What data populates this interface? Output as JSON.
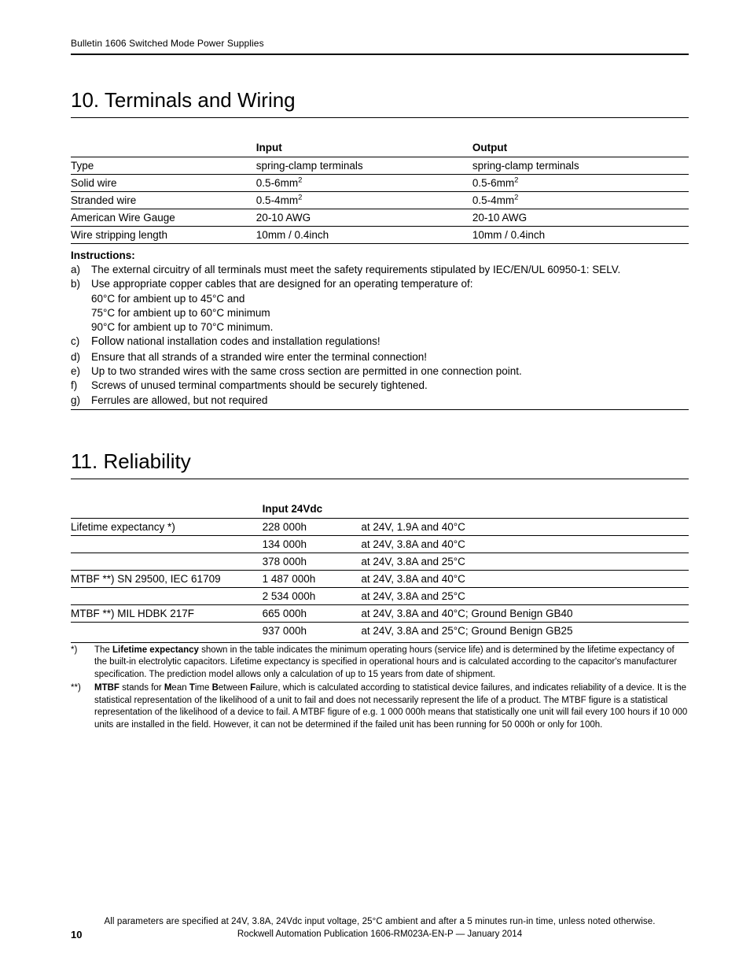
{
  "header": {
    "running_head": "Bulletin 1606 Switched Mode Power Supplies"
  },
  "section10": {
    "title": "10. Terminals and Wiring",
    "col_input": "Input",
    "col_output": "Output",
    "rows": [
      {
        "label": "Type",
        "input": "spring-clamp terminals",
        "output": "spring-clamp terminals",
        "sup": false
      },
      {
        "label": "Solid wire",
        "input": "0.5-6mm",
        "output": "0.5-6mm",
        "sup": true
      },
      {
        "label": "Stranded wire",
        "input": "0.5-4mm",
        "output": "0.5-4mm",
        "sup": true
      },
      {
        "label": "American Wire Gauge",
        "input": "20-10 AWG",
        "output": "20-10 AWG",
        "sup": false
      },
      {
        "label": "Wire stripping length",
        "input": "10mm / 0.4inch",
        "output": "10mm / 0.4inch",
        "sup": false
      }
    ],
    "instructions_hdr": "Instructions:",
    "instructions": {
      "a": "The external circuitry of all terminals must meet the safety requirements stipulated by IEC/EN/UL 60950-1: SELV.",
      "b": "Use appropriate copper cables that are designed for an operating temperature of:",
      "b1": "60°C for ambient up to 45°C and",
      "b2": "75°C for ambient up to 60°C minimum",
      "b3": "90°C for ambient up to 70°C minimum.",
      "c_pre": "Follow",
      "c_rest": " national installation codes and installation regulations!",
      "d": "Ensure that all strands of a stranded wire enter the terminal connection!",
      "e": "Up to two stranded wires with the same cross section are permitted in one connection point.",
      "f": "Screws of unused terminal compartments should be securely tightened.",
      "g": "Ferrules are allowed, but not required"
    }
  },
  "section11": {
    "title": "11. Reliability",
    "col_input": "Input 24Vdc",
    "groups": [
      {
        "label": "Lifetime expectancy *)",
        "rows": [
          {
            "val": "228 000h",
            "cond": "at 24V, 1.9A and 40°C"
          },
          {
            "val": "134 000h",
            "cond": "at 24V, 3.8A and 40°C"
          },
          {
            "val": "378 000h",
            "cond": "at 24V, 3.8A and 25°C"
          }
        ]
      },
      {
        "label": "MTBF **)  SN 29500, IEC 61709",
        "rows": [
          {
            "val": "1 487 000h",
            "cond": "at 24V, 3.8A and 40°C"
          },
          {
            "val": "2 534 000h",
            "cond": "at 24V, 3.8A and 25°C"
          }
        ]
      },
      {
        "label": "MTBF **)  MIL HDBK 217F",
        "rows": [
          {
            "val": "665 000h",
            "cond": "at 24V, 3.8A and 40°C; Ground Benign GB40"
          },
          {
            "val": "937 000h",
            "cond": "at 24V, 3.8A and 25°C; Ground Benign GB25"
          }
        ]
      }
    ],
    "footnotes": {
      "f1_mark": "*)",
      "f1_bold": "Lifetime expectancy",
      "f1_pre": "The ",
      "f1_rest": " shown in the table indicates the minimum operating hours (service life) and is determined by the lifetime expectancy of the built-in electrolytic capacitors. Lifetime expectancy is specified in operational hours and is calculated according to the capacitor's manufacturer specification. The prediction model allows only a calculation of up to 15 years from date of shipment.",
      "f2_mark": "**)",
      "f2_b1": "MTBF",
      "f2_t1": " stands for ",
      "f2_b2": "M",
      "f2_t2": "ean ",
      "f2_b3": "T",
      "f2_t3": "ime ",
      "f2_b4": "B",
      "f2_t4": "etween ",
      "f2_b5": "F",
      "f2_t5": "ailure, which is calculated according to statistical device failures, and indicates reliability of a device. It is the statistical representation of the likelihood of a unit to fail and does not necessarily represent the life of a product. The MTBF figure is a statistical representation of the likelihood of a device to fail. A MTBF figure of e.g. 1 000 000h means that statistically one unit will fail every 100 hours if 10 000 units are installed in the field. However, it can not be determined if the failed unit has been running for 50 000h or only for 100h."
    }
  },
  "footer": {
    "params": "All parameters are specified at 24V, 3.8A, 24Vdc input voltage, 25°C ambient and after a 5 minutes run-in time, unless noted otherwise.",
    "pub": "Rockwell Automation Publication 1606-RM023A-EN-P — January 2014",
    "page": "10"
  }
}
